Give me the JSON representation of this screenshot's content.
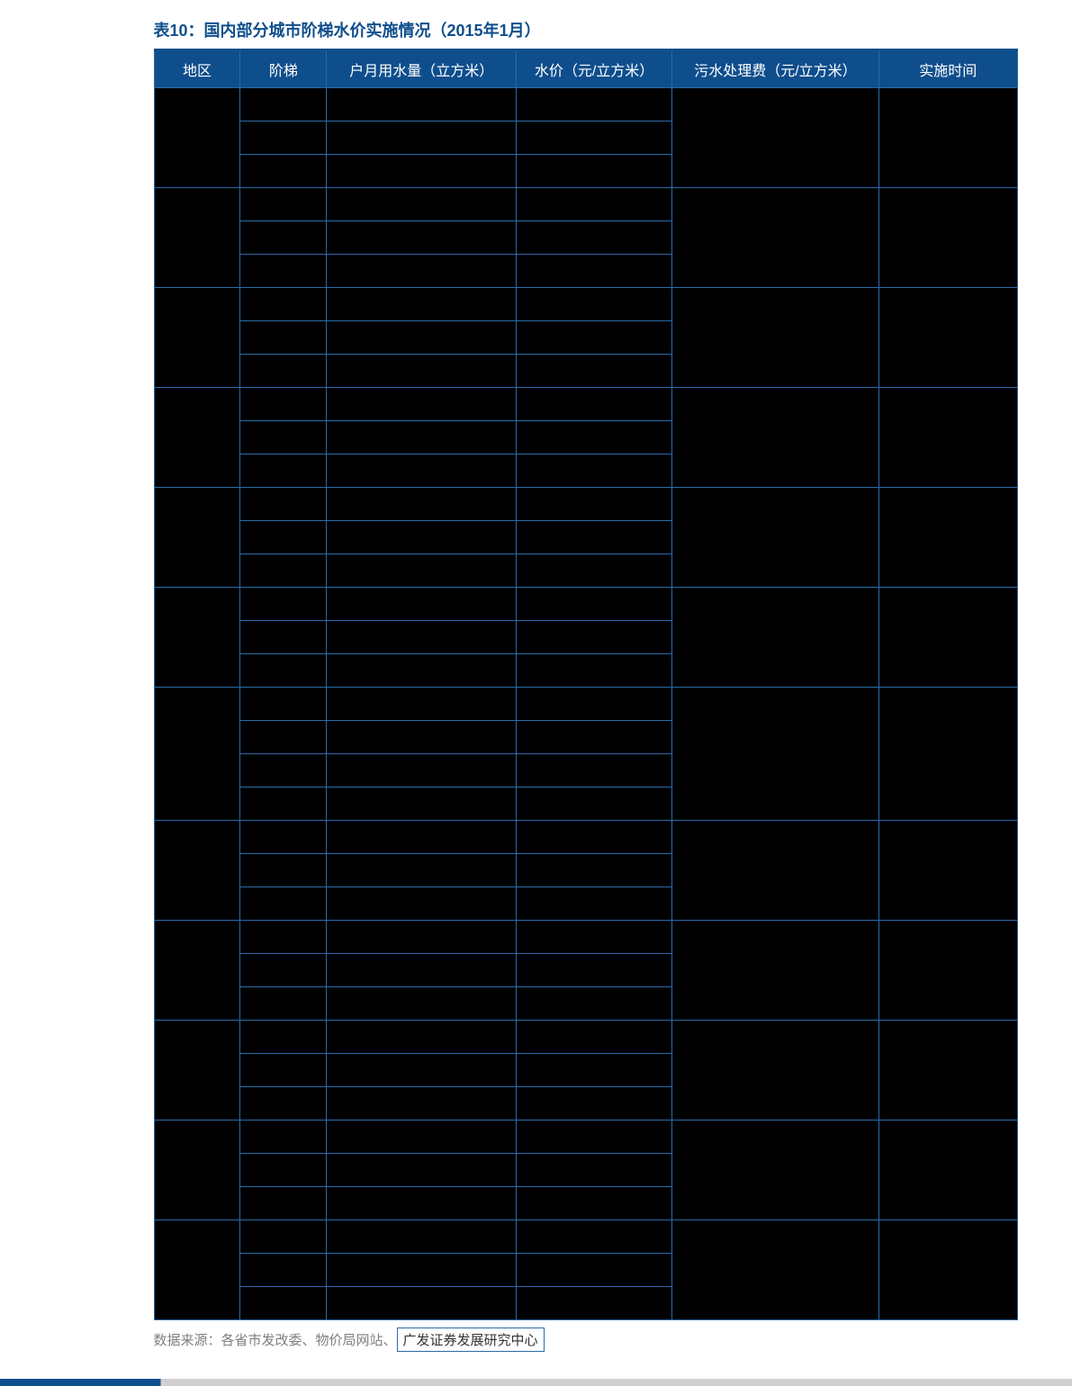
{
  "title": "表10：国内部分城市阶梯水价实施情况（2015年1月）",
  "source_prefix": "数据来源：各省市发改委、物价局网站、",
  "source_boxed": "广发证券发展研究中心",
  "table": {
    "columns": [
      "地区",
      "阶梯",
      "户月用水量（立方米）",
      "水价（元/立方米）",
      "污水处理费（元/立方米）",
      "实施时间"
    ],
    "col_widths_pct": [
      10,
      10,
      22,
      18,
      24,
      16
    ],
    "header_bg": "#0f4e8c",
    "header_text_color": "#ffffff",
    "border_color": "#2b6aa8",
    "cell_bg": "#000000",
    "title_color": "#0f4e8c",
    "source_color": "#808080",
    "groups": [
      {
        "region": "",
        "sewage": "",
        "impl": "",
        "tiers": [
          {
            "tier": "",
            "usage": "",
            "price": ""
          },
          {
            "tier": "",
            "usage": "",
            "price": ""
          },
          {
            "tier": "",
            "usage": "",
            "price": ""
          }
        ]
      },
      {
        "region": "",
        "sewage": "",
        "impl": "",
        "tiers": [
          {
            "tier": "",
            "usage": "",
            "price": ""
          },
          {
            "tier": "",
            "usage": "",
            "price": ""
          },
          {
            "tier": "",
            "usage": "",
            "price": ""
          }
        ]
      },
      {
        "region": "",
        "sewage": "",
        "impl": "",
        "tiers": [
          {
            "tier": "",
            "usage": "",
            "price": ""
          },
          {
            "tier": "",
            "usage": "",
            "price": ""
          },
          {
            "tier": "",
            "usage": "",
            "price": ""
          }
        ]
      },
      {
        "region": "",
        "sewage": "",
        "impl": "",
        "tiers": [
          {
            "tier": "",
            "usage": "",
            "price": ""
          },
          {
            "tier": "",
            "usage": "",
            "price": ""
          },
          {
            "tier": "",
            "usage": "",
            "price": ""
          }
        ]
      },
      {
        "region": "",
        "sewage": "",
        "impl": "",
        "tiers": [
          {
            "tier": "",
            "usage": "",
            "price": ""
          },
          {
            "tier": "",
            "usage": "",
            "price": ""
          },
          {
            "tier": "",
            "usage": "",
            "price": ""
          }
        ]
      },
      {
        "region": "",
        "sewage": "",
        "impl": "",
        "tiers": [
          {
            "tier": "",
            "usage": "",
            "price": ""
          },
          {
            "tier": "",
            "usage": "",
            "price": ""
          },
          {
            "tier": "",
            "usage": "",
            "price": ""
          }
        ]
      },
      {
        "region": "",
        "sewage": "",
        "impl": "",
        "tiers": [
          {
            "tier": "",
            "usage": "",
            "price": ""
          },
          {
            "tier": "",
            "usage": "",
            "price": ""
          },
          {
            "tier": "",
            "usage": "",
            "price": ""
          },
          {
            "tier": "",
            "usage": "",
            "price": ""
          }
        ]
      },
      {
        "region": "",
        "sewage": "",
        "impl": "",
        "tiers": [
          {
            "tier": "",
            "usage": "",
            "price": ""
          },
          {
            "tier": "",
            "usage": "",
            "price": ""
          },
          {
            "tier": "",
            "usage": "",
            "price": ""
          }
        ]
      },
      {
        "region": "",
        "sewage": "",
        "impl": "",
        "tiers": [
          {
            "tier": "",
            "usage": "",
            "price": ""
          },
          {
            "tier": "",
            "usage": "",
            "price": ""
          },
          {
            "tier": "",
            "usage": "",
            "price": ""
          }
        ]
      },
      {
        "region": "",
        "sewage": "",
        "impl": "",
        "tiers": [
          {
            "tier": "",
            "usage": "",
            "price": ""
          },
          {
            "tier": "",
            "usage": "",
            "price": ""
          },
          {
            "tier": "",
            "usage": "",
            "price": ""
          }
        ]
      },
      {
        "region": "",
        "sewage": "",
        "impl": "",
        "tiers": [
          {
            "tier": "",
            "usage": "",
            "price": ""
          },
          {
            "tier": "",
            "usage": "",
            "price": ""
          },
          {
            "tier": "",
            "usage": "",
            "price": ""
          }
        ]
      },
      {
        "region": "",
        "sewage": "",
        "impl": "",
        "tiers": [
          {
            "tier": "",
            "usage": "",
            "price": ""
          },
          {
            "tier": "",
            "usage": "",
            "price": ""
          },
          {
            "tier": "",
            "usage": "",
            "price": ""
          }
        ]
      }
    ]
  }
}
